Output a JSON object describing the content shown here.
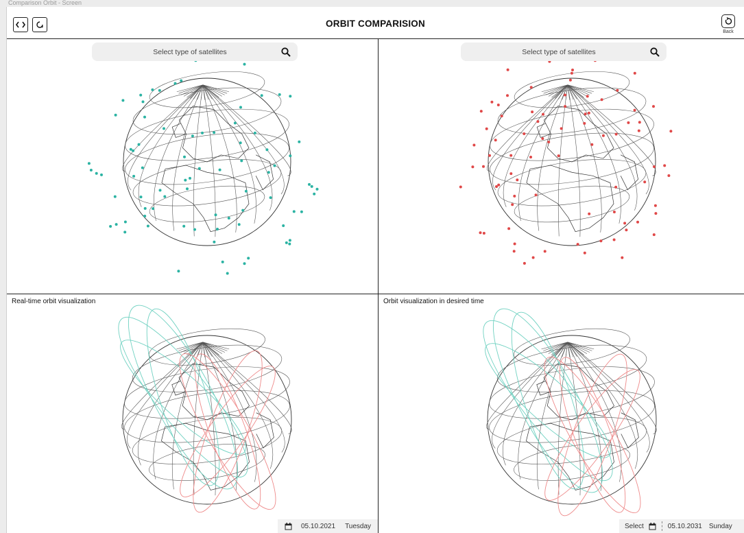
{
  "window": {
    "caption": "Comparison Orbit - Screen"
  },
  "header": {
    "title": "ORBIT COMPARISION",
    "back_label": "Back",
    "left_icons": [
      "code-brackets-icon",
      "orbit-globe-icon"
    ],
    "back_icon": "rotate-back-icon"
  },
  "panels": {
    "left_top": {
      "search_placeholder": "Select type of satellites",
      "dot_color": "#2bb3a3"
    },
    "right_top": {
      "search_placeholder": "Select type of satellites",
      "dot_color": "#e04848"
    },
    "left_bottom": {
      "title": "Real-time orbit visualization",
      "date": "05.10.2021",
      "weekday": "Tuesday"
    },
    "right_bottom": {
      "title": "Orbit visualization in desired time",
      "select_label": "Select",
      "date": "05.10.2031",
      "weekday": "Sunday"
    }
  },
  "colors": {
    "teal_orbit": "#6fd1c1",
    "red_orbit": "#ee8a8a",
    "line": "#222222"
  }
}
